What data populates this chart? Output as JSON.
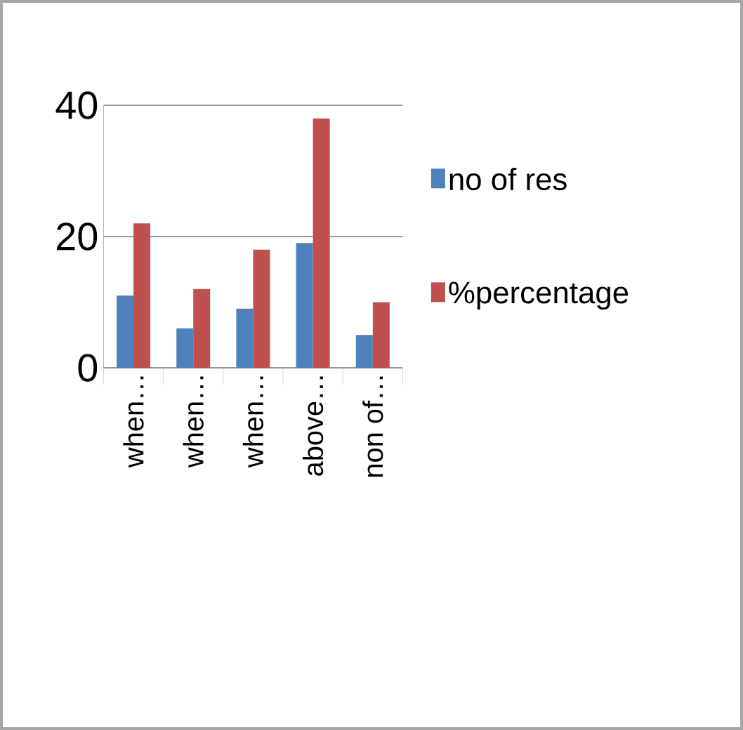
{
  "chart_data": {
    "type": "bar",
    "categories": [
      "when…",
      "when…",
      "when…",
      "above…",
      "non of…"
    ],
    "series": [
      {
        "name": "no of res",
        "color": "#4f81bd",
        "values": [
          11,
          6,
          9,
          19,
          5
        ]
      },
      {
        "name": "%percentage",
        "color": "#c0504d",
        "values": [
          22,
          12,
          18,
          38,
          10
        ]
      }
    ],
    "ylim": [
      0,
      40
    ],
    "yticks": [
      0,
      20,
      40
    ],
    "grid": "y",
    "legend": "right"
  }
}
